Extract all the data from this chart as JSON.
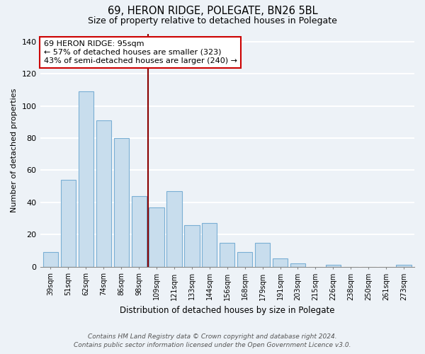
{
  "title": "69, HERON RIDGE, POLEGATE, BN26 5BL",
  "subtitle": "Size of property relative to detached houses in Polegate",
  "xlabel": "Distribution of detached houses by size in Polegate",
  "ylabel": "Number of detached properties",
  "categories": [
    "39sqm",
    "51sqm",
    "62sqm",
    "74sqm",
    "86sqm",
    "98sqm",
    "109sqm",
    "121sqm",
    "133sqm",
    "144sqm",
    "156sqm",
    "168sqm",
    "179sqm",
    "191sqm",
    "203sqm",
    "215sqm",
    "226sqm",
    "238sqm",
    "250sqm",
    "261sqm",
    "273sqm"
  ],
  "values": [
    9,
    54,
    109,
    91,
    80,
    44,
    37,
    47,
    26,
    27,
    15,
    9,
    15,
    5,
    2,
    0,
    1,
    0,
    0,
    0,
    1
  ],
  "bar_color": "#c8dded",
  "bar_edge_color": "#7aafd4",
  "vline_x_index": 5,
  "vline_color": "#8b0000",
  "annotation_line1": "69 HERON RIDGE: 95sqm",
  "annotation_line2": "← 57% of detached houses are smaller (323)",
  "annotation_line3": "43% of semi-detached houses are larger (240) →",
  "annotation_box_color": "white",
  "annotation_box_edge": "#cc0000",
  "ylim": [
    0,
    145
  ],
  "yticks": [
    0,
    20,
    40,
    60,
    80,
    100,
    120,
    140
  ],
  "background_color": "#edf2f7",
  "grid_color": "white",
  "footer_line1": "Contains HM Land Registry data © Crown copyright and database right 2024.",
  "footer_line2": "Contains public sector information licensed under the Open Government Licence v3.0."
}
